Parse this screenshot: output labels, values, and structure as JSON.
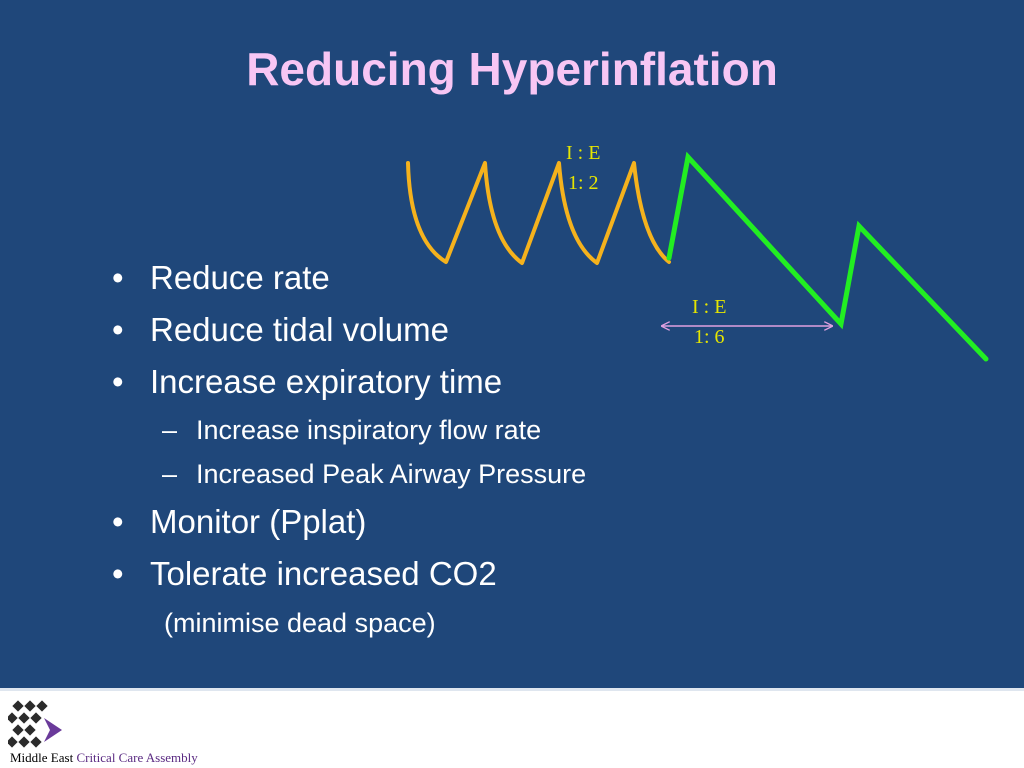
{
  "slide": {
    "title": "Reducing Hyperinflation",
    "bullets": [
      {
        "level": 1,
        "marker": "•",
        "text": "Reduce rate"
      },
      {
        "level": 1,
        "marker": "•",
        "text": "Reduce tidal volume"
      },
      {
        "level": 1,
        "marker": "•",
        "text": "Increase expiratory time"
      },
      {
        "level": 2,
        "marker": "–",
        "text": "Increase inspiratory flow rate"
      },
      {
        "level": 2,
        "marker": "–",
        "text": "Increased Peak Airway Pressure"
      },
      {
        "level": 1,
        "marker": "•",
        "text": "Monitor (Pplat)"
      },
      {
        "level": 1,
        "marker": "•",
        "text": "Tolerate increased CO2"
      }
    ],
    "note": "(minimise dead space)"
  },
  "diagram": {
    "waveform_fast": {
      "ie_label": "I : E",
      "ratio": "1: 2",
      "color": "#f5b21d"
    },
    "waveform_slow": {
      "ie_label": "I : E",
      "ratio": "1: 6",
      "color": "#22ee22"
    },
    "arrow_color": "#e0a0e0",
    "label_color": "#e5e500"
  },
  "footer": {
    "org_part1": "Middle East",
    "org_part2": "Critical Care Assembly",
    "logo_colors": [
      "#2b2b2b",
      "#6a3a9a"
    ]
  },
  "colors": {
    "background": "#1f477a",
    "title": "#f7c6f4",
    "text": "#ffffff"
  }
}
